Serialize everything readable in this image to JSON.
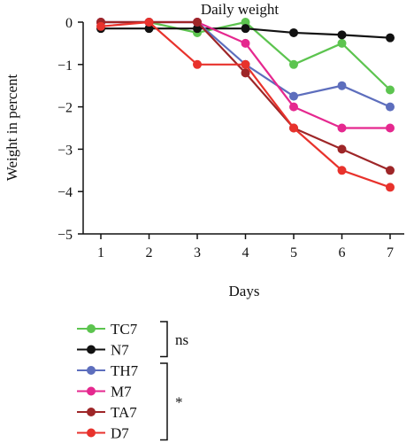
{
  "chart_data": {
    "type": "line",
    "title": "Daily weight",
    "xlabel": "Days",
    "ylabel": "Weight in percent",
    "x": [
      1,
      2,
      3,
      4,
      5,
      6,
      7
    ],
    "xticks": [
      "1",
      "2",
      "3",
      "4",
      "5",
      "6",
      "7"
    ],
    "ylim": [
      -5,
      0
    ],
    "yticks": [
      "0",
      "−1",
      "−2",
      "−3",
      "−4",
      "−5"
    ],
    "grid": false,
    "legend": "bottom-left",
    "series": [
      {
        "name": "TC7",
        "color": "#5cc44f",
        "values": [
          0,
          0,
          -0.25,
          0,
          -1,
          -0.5,
          -1.6
        ]
      },
      {
        "name": "N7",
        "color": "#111111",
        "values": [
          -0.15,
          -0.15,
          -0.15,
          -0.15,
          -0.25,
          -0.3,
          -0.37
        ]
      },
      {
        "name": "TH7",
        "color": "#5d6ebd",
        "values": [
          0,
          0,
          0,
          -1,
          -1.75,
          -1.5,
          -2
        ]
      },
      {
        "name": "M7",
        "color": "#e5288f",
        "values": [
          0,
          0,
          0,
          -0.5,
          -2,
          -2.5,
          -2.5
        ]
      },
      {
        "name": "TA7",
        "color": "#9e2628",
        "values": [
          0,
          0,
          0,
          -1.2,
          -2.5,
          -3,
          -3.5
        ]
      },
      {
        "name": "D7",
        "color": "#e8322c",
        "values": [
          -0.1,
          0,
          -1,
          -1,
          -2.5,
          -3.5,
          -3.9
        ]
      }
    ],
    "annotations": [
      {
        "label": "ns",
        "series": [
          "TC7",
          "N7"
        ]
      },
      {
        "label": "*",
        "series": [
          "TH7",
          "M7",
          "TA7",
          "D7"
        ]
      }
    ]
  }
}
